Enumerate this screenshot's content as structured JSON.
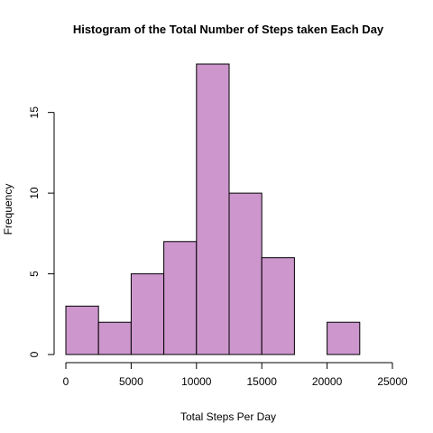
{
  "chart_data": {
    "type": "bar",
    "title": "Histogram of the Total Number of Steps taken Each Day",
    "xlabel": "Total Steps Per Day",
    "ylabel": "Frequency",
    "bins": [
      {
        "from": 0,
        "to": 2500,
        "count": 3
      },
      {
        "from": 2500,
        "to": 5000,
        "count": 2
      },
      {
        "from": 5000,
        "to": 7500,
        "count": 5
      },
      {
        "from": 7500,
        "to": 10000,
        "count": 7
      },
      {
        "from": 10000,
        "to": 12500,
        "count": 18
      },
      {
        "from": 12500,
        "to": 15000,
        "count": 10
      },
      {
        "from": 15000,
        "to": 17500,
        "count": 6
      },
      {
        "from": 17500,
        "to": 20000,
        "count": 0
      },
      {
        "from": 20000,
        "to": 22500,
        "count": 2
      },
      {
        "from": 22500,
        "to": 25000,
        "count": 0
      }
    ],
    "xlim": [
      0,
      25000
    ],
    "ylim": [
      0,
      18
    ],
    "x_ticks": [
      0,
      5000,
      10000,
      15000,
      20000,
      25000
    ],
    "y_ticks": [
      0,
      5,
      10,
      15
    ],
    "grid": false,
    "bar_color": "#cd96cd",
    "edge_color": "#000000"
  }
}
